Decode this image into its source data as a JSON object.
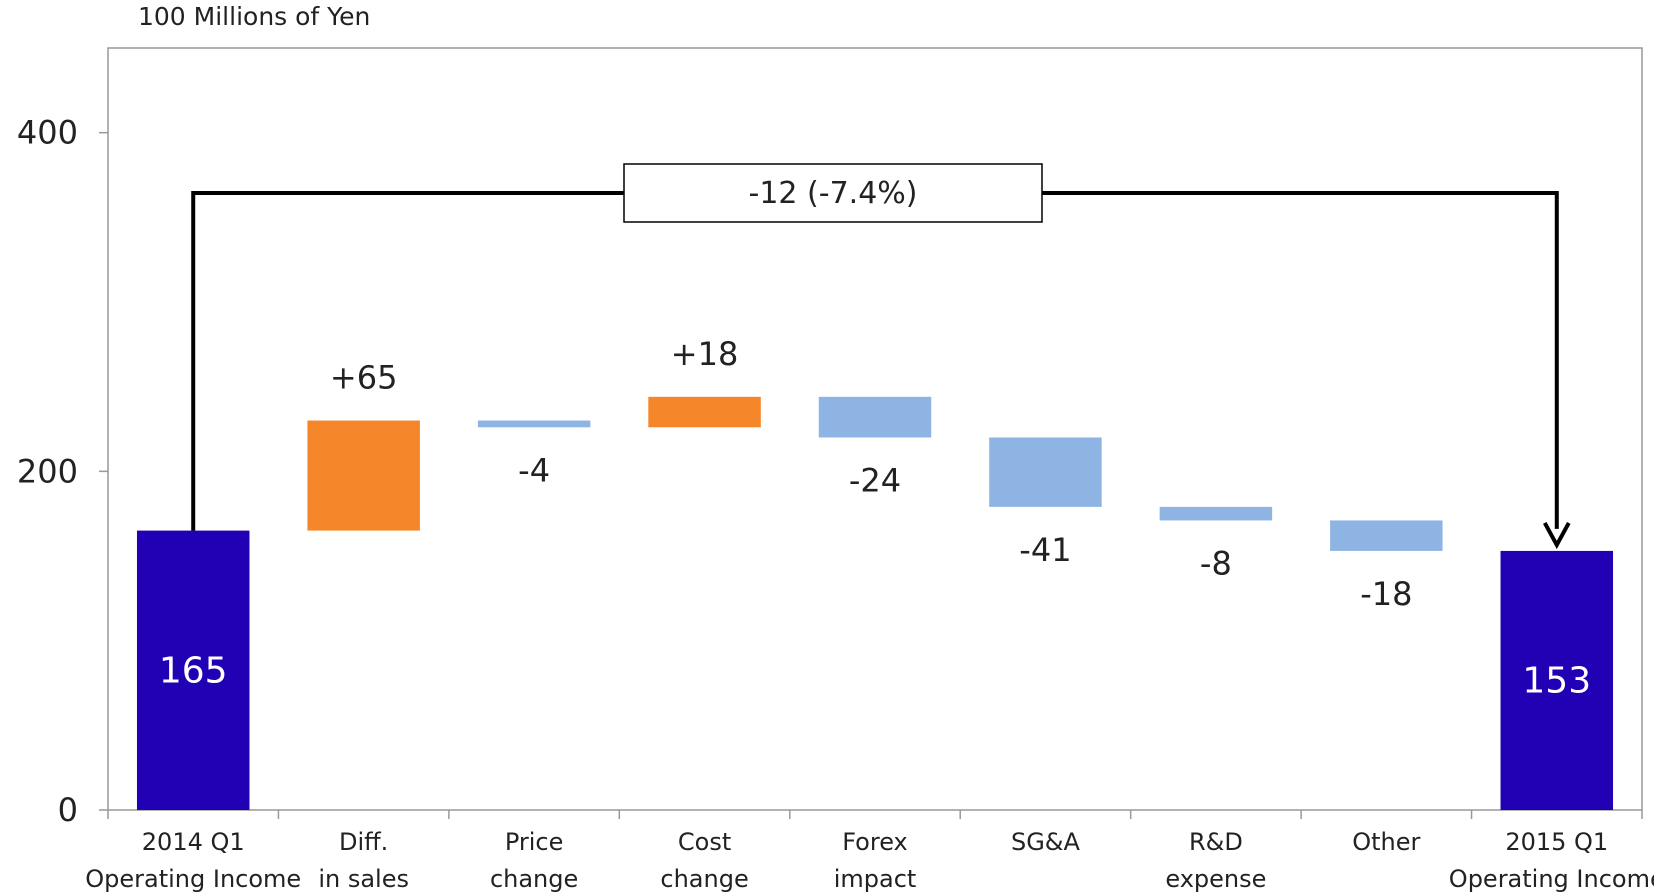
{
  "unit_label": "100 Millions of Yen",
  "chart_data": {
    "type": "bar",
    "subtype": "waterfall",
    "ylim": [
      0,
      450
    ],
    "yticks": [
      0,
      200,
      400
    ],
    "grid": false,
    "categories": [
      [
        "2014 Q1",
        "Operating Income"
      ],
      [
        "Diff.",
        "in sales"
      ],
      [
        "Price",
        "change"
      ],
      [
        "Cost",
        "change"
      ],
      [
        "Forex",
        "impact"
      ],
      [
        "SG&A"
      ],
      [
        "R&D",
        "expense"
      ],
      [
        "Other"
      ],
      [
        "2015 Q1",
        "Operating Income"
      ]
    ],
    "steps": [
      {
        "kind": "total",
        "value": 165,
        "label": "165"
      },
      {
        "kind": "increase",
        "value": 65,
        "label": "+65"
      },
      {
        "kind": "decrease",
        "value": -4,
        "label": "-4"
      },
      {
        "kind": "increase",
        "value": 18,
        "label": "+18"
      },
      {
        "kind": "decrease",
        "value": -24,
        "label": "-24"
      },
      {
        "kind": "decrease",
        "value": -41,
        "label": "-41"
      },
      {
        "kind": "decrease",
        "value": -8,
        "label": "-8"
      },
      {
        "kind": "decrease",
        "value": -18,
        "label": "-18"
      },
      {
        "kind": "total",
        "value": 153,
        "label": "153"
      }
    ],
    "change_annotation": "-12 (-7.4%)",
    "colors": {
      "total": "#2200b4",
      "increase": "#f5862a",
      "decrease": "#8eb4e3",
      "axis": "#999999",
      "arrow": "#000000"
    }
  }
}
